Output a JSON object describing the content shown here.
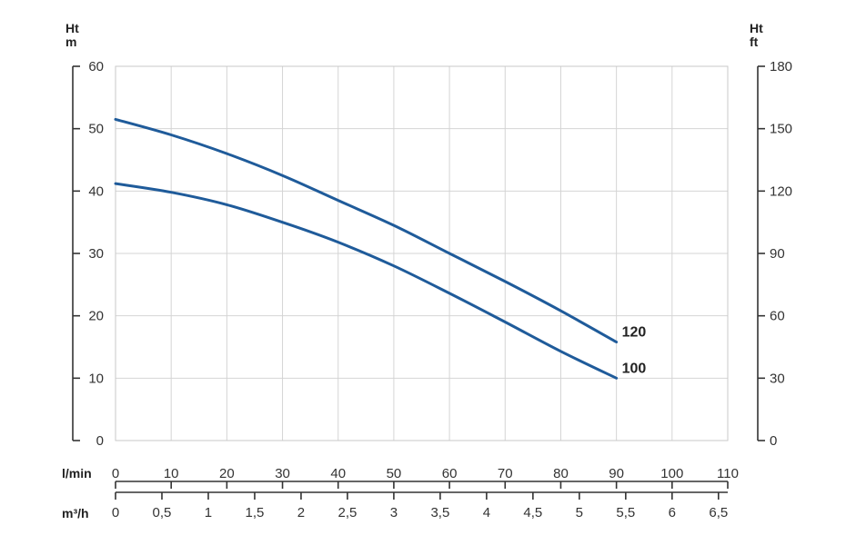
{
  "chart_data": {
    "type": "line",
    "y_left": {
      "label_top": "Ht",
      "label_unit": "m",
      "range": [
        0,
        60
      ],
      "ticks": [
        0,
        10,
        20,
        30,
        40,
        50,
        60
      ],
      "tick_labels": [
        "0",
        "10",
        "20",
        "30",
        "40",
        "50",
        "60"
      ]
    },
    "y_right": {
      "label_top": "Ht",
      "label_unit": "ft",
      "range": [
        0,
        180
      ],
      "ticks": [
        0,
        30,
        60,
        90,
        120,
        150,
        180
      ],
      "tick_labels": [
        "0",
        "30",
        "60",
        "90",
        "120",
        "150",
        "180"
      ]
    },
    "x_lmin": {
      "label": "l/min",
      "range": [
        0,
        110
      ],
      "ticks": [
        0,
        10,
        20,
        30,
        40,
        50,
        60,
        70,
        80,
        90,
        100,
        110
      ],
      "tick_labels": [
        "0",
        "10",
        "20",
        "30",
        "40",
        "50",
        "60",
        "70",
        "80",
        "90",
        "100",
        "110"
      ]
    },
    "x_m3h": {
      "label": "m³/h",
      "range": [
        0,
        6.6
      ],
      "ticks": [
        0,
        0.5,
        1,
        1.5,
        2,
        2.5,
        3,
        3.5,
        4,
        4.5,
        5,
        5.5,
        6,
        6.5
      ],
      "tick_labels": [
        "0",
        "0,5",
        "1",
        "1,5",
        "2",
        "2,5",
        "3",
        "3,5",
        "4",
        "4,5",
        "5",
        "5,5",
        "6",
        "6,5"
      ]
    },
    "grid": true,
    "series": [
      {
        "name": "120",
        "color": "#1f5b9a",
        "x": [
          0,
          10,
          20,
          30,
          40,
          50,
          60,
          70,
          80,
          90
        ],
        "y": [
          51.5,
          49.0,
          46.0,
          42.5,
          38.5,
          34.5,
          30.0,
          25.5,
          20.8,
          15.8
        ]
      },
      {
        "name": "100",
        "color": "#1f5b9a",
        "x": [
          0,
          10,
          20,
          30,
          40,
          50,
          60,
          70,
          80,
          90
        ],
        "y": [
          41.2,
          39.8,
          37.8,
          35.0,
          31.8,
          28.0,
          23.6,
          19.0,
          14.3,
          10.0
        ]
      }
    ]
  }
}
